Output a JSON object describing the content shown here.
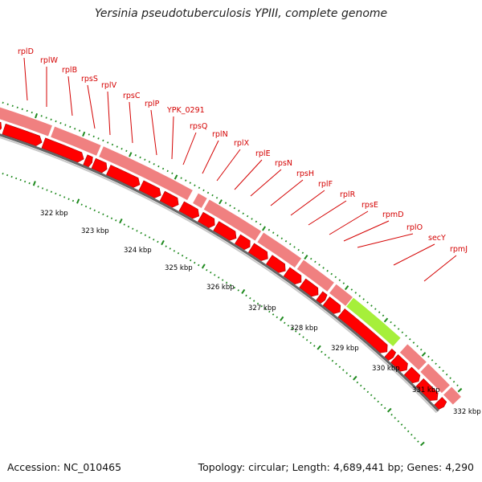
{
  "title": "Yersinia pseudotuberculosis YPIII, complete genome",
  "footer": {
    "accession": "Accession: NC_010465",
    "topology": "Topology: circular; Length: 4,689,441 bp; Genes: 4,290"
  },
  "scale_ticks": [
    "322 kbp",
    "323 kbp",
    "324 kbp",
    "325 kbp",
    "326 kbp",
    "327 kbp",
    "328 kbp",
    "329 kbp",
    "330 kbp",
    "331 kbp",
    "332 kbp"
  ],
  "genes": [
    "rplD",
    "rplW",
    "rplB",
    "rpsS",
    "rplV",
    "rpsC",
    "rplP",
    "YPK_0291",
    "rpsQ",
    "rplN",
    "rplX",
    "rplE",
    "rpsN",
    "rpsH",
    "rplF",
    "rplR",
    "rpsE",
    "rpmD",
    "rplO",
    "secY",
    "rpmJ"
  ],
  "colors": {
    "gene_arrow": "#ff0000",
    "gene_bar": "#f08080",
    "highlight": "#a6ef3a",
    "ticks": "#1f8a1f",
    "label": "#d40000"
  }
}
